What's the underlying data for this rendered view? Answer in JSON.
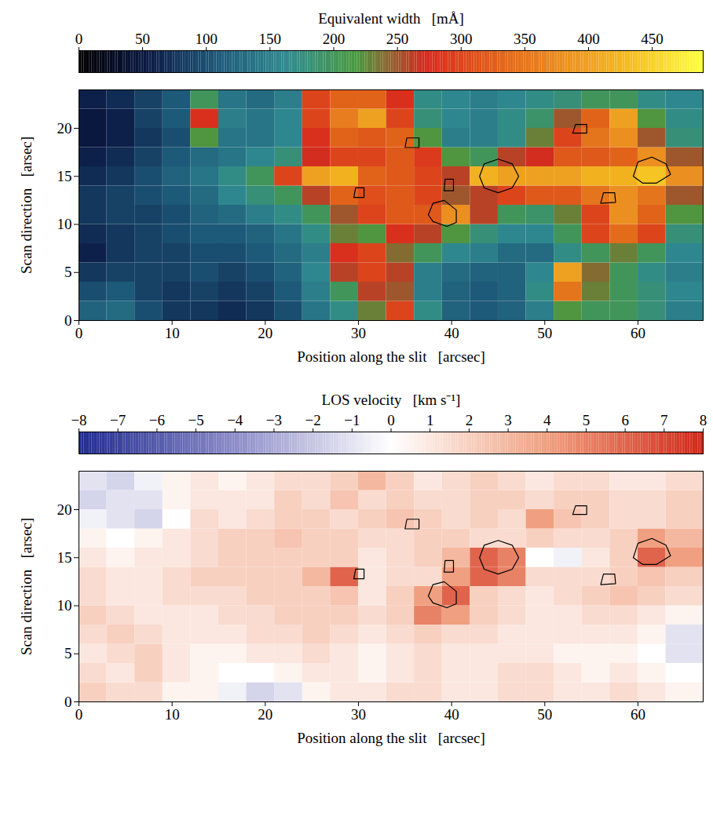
{
  "chart_data": [
    {
      "type": "heatmap",
      "colorbar_label": "Equivalent width   [mÅ]",
      "colorbar_lim": [
        0,
        490
      ],
      "colorbar_ticks": [
        0,
        50,
        100,
        150,
        200,
        250,
        300,
        350,
        400,
        450
      ],
      "xlabel": "Position along the slit   [arcsec]",
      "ylabel": "Scan direction   [arsec]",
      "xlim": [
        0,
        67
      ],
      "ylim": [
        0,
        24
      ],
      "xticks": [
        0,
        10,
        20,
        30,
        40,
        50,
        60
      ],
      "yticks": [
        0,
        5,
        10,
        15,
        20
      ],
      "x_edges": [
        0,
        3,
        6,
        9,
        12,
        15,
        18,
        21,
        24,
        27,
        30,
        33,
        36,
        39,
        42,
        45,
        48,
        51,
        54,
        57,
        60,
        63,
        67
      ],
      "y_edges": [
        0,
        2,
        4,
        6,
        8,
        10,
        12,
        14,
        16,
        18,
        20,
        22,
        24
      ],
      "cells": [
        [
          120,
          130,
          100,
          80,
          80,
          70,
          80,
          100,
          140,
          170,
          230,
          300,
          170,
          120,
          110,
          120,
          150,
          220,
          200,
          200,
          180,
          150
        ],
        [
          100,
          110,
          90,
          80,
          90,
          80,
          90,
          110,
          150,
          200,
          260,
          250,
          150,
          120,
          110,
          120,
          170,
          350,
          230,
          200,
          180,
          160
        ],
        [
          80,
          90,
          90,
          90,
          100,
          90,
          100,
          120,
          160,
          260,
          300,
          260,
          150,
          130,
          120,
          120,
          160,
          400,
          240,
          200,
          170,
          150
        ],
        [
          60,
          80,
          90,
          90,
          100,
          100,
          110,
          130,
          150,
          280,
          300,
          240,
          200,
          160,
          150,
          130,
          130,
          170,
          200,
          230,
          200,
          160
        ],
        [
          70,
          80,
          90,
          100,
          110,
          110,
          120,
          140,
          170,
          230,
          220,
          280,
          260,
          220,
          180,
          160,
          160,
          200,
          300,
          340,
          300,
          180
        ],
        [
          80,
          90,
          90,
          100,
          120,
          130,
          150,
          170,
          200,
          250,
          300,
          320,
          320,
          380,
          260,
          200,
          190,
          230,
          300,
          380,
          330,
          220
        ],
        [
          80,
          90,
          100,
          110,
          130,
          160,
          180,
          200,
          260,
          330,
          310,
          320,
          300,
          250,
          260,
          300,
          320,
          320,
          350,
          380,
          350,
          250
        ],
        [
          70,
          80,
          100,
          120,
          140,
          170,
          200,
          300,
          400,
          420,
          330,
          320,
          300,
          260,
          420,
          400,
          400,
          400,
          420,
          420,
          440,
          380
        ],
        [
          60,
          70,
          90,
          110,
          130,
          140,
          160,
          180,
          270,
          300,
          300,
          320,
          290,
          220,
          200,
          260,
          270,
          320,
          320,
          330,
          380,
          250
        ],
        [
          50,
          60,
          80,
          100,
          220,
          140,
          140,
          160,
          280,
          330,
          320,
          330,
          220,
          150,
          150,
          170,
          230,
          300,
          350,
          380,
          250,
          180
        ],
        [
          50,
          60,
          90,
          110,
          280,
          150,
          140,
          160,
          300,
          360,
          400,
          300,
          180,
          160,
          150,
          170,
          190,
          250,
          330,
          400,
          220,
          170
        ],
        [
          60,
          70,
          90,
          110,
          200,
          140,
          130,
          150,
          300,
          330,
          330,
          280,
          170,
          160,
          150,
          160,
          170,
          180,
          200,
          200,
          170,
          160
        ]
      ],
      "contours": [
        [
          [
            43,
            15
          ],
          [
            43.5,
            16.3
          ],
          [
            45,
            16.8
          ],
          [
            46.5,
            16.3
          ],
          [
            47.2,
            15
          ],
          [
            46.5,
            13.8
          ],
          [
            45,
            13.3
          ],
          [
            43.5,
            13.8
          ]
        ],
        [
          [
            59.5,
            15
          ],
          [
            60,
            16.5
          ],
          [
            61.5,
            17
          ],
          [
            63,
            16.3
          ],
          [
            63.5,
            15.2
          ],
          [
            62,
            14.3
          ],
          [
            60.5,
            14.3
          ]
        ],
        [
          [
            37.5,
            11
          ],
          [
            38,
            12.2
          ],
          [
            39.2,
            12.5
          ],
          [
            40.5,
            11.5
          ],
          [
            40.5,
            10.2
          ],
          [
            39.5,
            9.8
          ],
          [
            38,
            10.3
          ]
        ],
        [
          [
            29.5,
            12.8
          ],
          [
            29.7,
            13.8
          ],
          [
            30.6,
            13.8
          ],
          [
            30.6,
            12.8
          ]
        ],
        [
          [
            53,
            19.5
          ],
          [
            53.3,
            20.4
          ],
          [
            54.5,
            20.4
          ],
          [
            54.5,
            19.5
          ]
        ],
        [
          [
            56,
            12.2
          ],
          [
            56.3,
            13.3
          ],
          [
            57.5,
            13.3
          ],
          [
            57.6,
            12.3
          ]
        ],
        [
          [
            35,
            18
          ],
          [
            35.2,
            19
          ],
          [
            36.5,
            19
          ],
          [
            36.5,
            18
          ]
        ],
        [
          [
            39.2,
            13.5
          ],
          [
            39.3,
            14.7
          ],
          [
            40.2,
            14.7
          ],
          [
            40.2,
            13.5
          ]
        ]
      ]
    },
    {
      "type": "heatmap",
      "colorbar_label": "LOS velocity   [km s⁻¹]",
      "colorbar_lim": [
        -8,
        8
      ],
      "colorbar_ticks": [
        -8,
        -7,
        -6,
        -5,
        -4,
        -3,
        -2,
        -1,
        0,
        1,
        2,
        3,
        4,
        5,
        6,
        7,
        8
      ],
      "xlabel": "Position along the slit   [arcsec]",
      "ylabel": "Scan direction   [arsec]",
      "xlim": [
        0,
        67
      ],
      "ylim": [
        0,
        24
      ],
      "xticks": [
        0,
        10,
        20,
        30,
        40,
        50,
        60
      ],
      "yticks": [
        0,
        5,
        10,
        15,
        20
      ],
      "x_edges": [
        0,
        3,
        6,
        9,
        12,
        15,
        18,
        21,
        24,
        27,
        30,
        33,
        36,
        39,
        42,
        45,
        48,
        51,
        54,
        57,
        60,
        63,
        67
      ],
      "y_edges": [
        0,
        2,
        4,
        6,
        8,
        10,
        12,
        14,
        16,
        18,
        20,
        22,
        24
      ],
      "cells": [
        [
          2,
          1.5,
          1.5,
          0.5,
          0.5,
          -0.5,
          -1.5,
          -1,
          0.5,
          1,
          1,
          1.5,
          1.5,
          1,
          1,
          1.5,
          1.5,
          1,
          1,
          1.5,
          1,
          0.5
        ],
        [
          1.5,
          1,
          2,
          1,
          0.5,
          0,
          0,
          0.5,
          1,
          1,
          0.5,
          1,
          1.5,
          1,
          1,
          1.5,
          1.5,
          1,
          0.5,
          1,
          0.5,
          0
        ],
        [
          1,
          1.5,
          2,
          1,
          0.5,
          0.5,
          1,
          1,
          1.5,
          1,
          0.5,
          1,
          1.5,
          1,
          1,
          1,
          1,
          0.5,
          0.5,
          0.5,
          0,
          -1
        ],
        [
          1.5,
          2,
          1.5,
          1,
          1,
          1,
          1.5,
          1.5,
          2,
          1.5,
          1,
          1.5,
          2,
          1.5,
          1.5,
          1,
          1,
          1,
          1,
          1,
          0.5,
          -1
        ],
        [
          2,
          1.5,
          1,
          1,
          1,
          1.5,
          1.5,
          2,
          2,
          2,
          1.5,
          2,
          5,
          4,
          2,
          1.5,
          1,
          1,
          1.5,
          1.5,
          1,
          0.5
        ],
        [
          1.5,
          1,
          1,
          1.5,
          1.5,
          1.5,
          2,
          2,
          2,
          2.5,
          1,
          2,
          4,
          6,
          2,
          1.5,
          1,
          1.5,
          2,
          2.5,
          2,
          1.5
        ],
        [
          1.5,
          1,
          1,
          1.5,
          2,
          2,
          2,
          2,
          3,
          6,
          1,
          1.5,
          1.5,
          4,
          6,
          5,
          1.5,
          1.5,
          1.5,
          2,
          2.5,
          2
        ],
        [
          1,
          0.5,
          1,
          1,
          1.5,
          2,
          2,
          2,
          2,
          2,
          1,
          1.5,
          2,
          3,
          6,
          5,
          0,
          -0.5,
          1,
          2,
          6,
          4
        ],
        [
          0.5,
          0,
          0.5,
          1,
          1.5,
          2,
          2,
          2.5,
          2,
          2,
          1.5,
          1.5,
          2,
          2,
          1.5,
          1.5,
          2,
          1.5,
          1.5,
          2,
          4,
          3
        ],
        [
          -0.5,
          -1,
          -1.5,
          0,
          1.5,
          1,
          1.5,
          2,
          2,
          1.5,
          2,
          2.5,
          2,
          1.5,
          2,
          1.5,
          4,
          2.5,
          2,
          1.5,
          1.5,
          2
        ],
        [
          -1.5,
          -1,
          -1,
          0.5,
          1,
          1,
          1,
          2,
          1.5,
          2.5,
          1.5,
          2,
          1.5,
          1.5,
          2,
          2,
          1.5,
          2,
          2,
          1.5,
          1.5,
          2
        ],
        [
          -1,
          -1.5,
          -0.5,
          0.5,
          1,
          0.5,
          1,
          1.5,
          1.5,
          2,
          3,
          2,
          1,
          1.5,
          2,
          1.5,
          1,
          1.5,
          1.5,
          1,
          1,
          1.5
        ]
      ],
      "contours": [
        [
          [
            43,
            15
          ],
          [
            43.5,
            16.3
          ],
          [
            45,
            16.8
          ],
          [
            46.5,
            16.3
          ],
          [
            47.2,
            15
          ],
          [
            46.5,
            13.8
          ],
          [
            45,
            13.3
          ],
          [
            43.5,
            13.8
          ]
        ],
        [
          [
            59.5,
            15
          ],
          [
            60,
            16.5
          ],
          [
            61.5,
            17
          ],
          [
            63,
            16.3
          ],
          [
            63.5,
            15.2
          ],
          [
            62,
            14.3
          ],
          [
            60.5,
            14.3
          ]
        ],
        [
          [
            37.5,
            11
          ],
          [
            38,
            12.2
          ],
          [
            39.2,
            12.5
          ],
          [
            40.5,
            11.5
          ],
          [
            40.5,
            10.2
          ],
          [
            39.5,
            9.8
          ],
          [
            38,
            10.3
          ]
        ],
        [
          [
            29.5,
            12.8
          ],
          [
            29.7,
            13.8
          ],
          [
            30.6,
            13.8
          ],
          [
            30.6,
            12.8
          ]
        ],
        [
          [
            53,
            19.5
          ],
          [
            53.3,
            20.4
          ],
          [
            54.5,
            20.4
          ],
          [
            54.5,
            19.5
          ]
        ],
        [
          [
            56,
            12.2
          ],
          [
            56.3,
            13.3
          ],
          [
            57.5,
            13.3
          ],
          [
            57.6,
            12.3
          ]
        ],
        [
          [
            35,
            18
          ],
          [
            35.2,
            19
          ],
          [
            36.5,
            19
          ],
          [
            36.5,
            18
          ]
        ],
        [
          [
            39.2,
            13.5
          ],
          [
            39.3,
            14.7
          ],
          [
            40.2,
            14.7
          ],
          [
            40.2,
            13.5
          ]
        ]
      ]
    }
  ]
}
